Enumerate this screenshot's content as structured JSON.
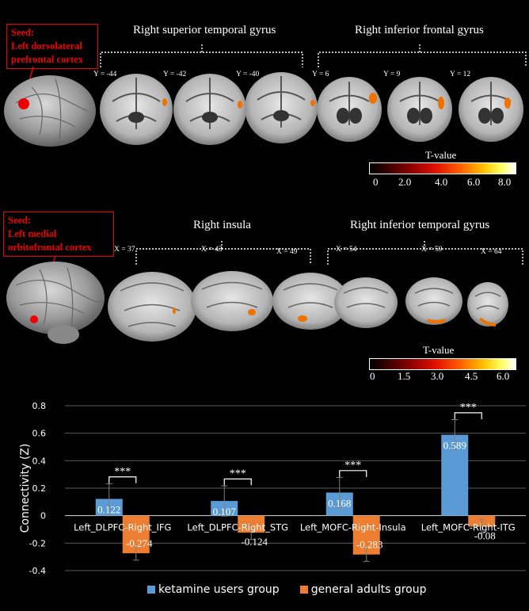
{
  "panel1": {
    "seed_label": "Seed:",
    "seed_region": "Left dorsolateral prefrontal cortex",
    "regions": [
      {
        "title": "Right superior temporal gyrus",
        "coords": [
          "Y = -44",
          "Y = -42",
          "Y = -40"
        ]
      },
      {
        "title": "Right inferior frontal gyrus",
        "coords": [
          "Y = 6",
          "Y = 9",
          "Y = 12"
        ]
      }
    ],
    "tvalue_title": "T-value",
    "tvalue_ticks": [
      "0",
      "2.0",
      "4.0",
      "6.0",
      "8.0"
    ]
  },
  "panel2": {
    "seed_label": "Seed:",
    "seed_region": "Left medial orbitofrontal cortex",
    "regions": [
      {
        "title": "Right insula",
        "coords": [
          "X = 37",
          "X = 43",
          "X = 49"
        ]
      },
      {
        "title": "Right inferior temporal gyrus",
        "coords": [
          "X = 54",
          "X = 59",
          "X = 64"
        ]
      }
    ],
    "tvalue_title": "T-value",
    "tvalue_ticks": [
      "0",
      "1.5",
      "3.0",
      "4.5",
      "6.0"
    ]
  },
  "colors": {
    "ketamine": "#5b9bd5",
    "general": "#ed7d31",
    "seed": "#e00000",
    "activation": "#f07000"
  },
  "chart_data": {
    "type": "bar",
    "ylabel": "Connectivity (Z)",
    "ylim": [
      -0.4,
      0.8
    ],
    "yticks": [
      "0.8",
      "0.6",
      "0.4",
      "0.2",
      "0",
      "-0.2",
      "-0.4"
    ],
    "ytick_values": [
      0.8,
      0.6,
      0.4,
      0.2,
      0,
      -0.2,
      -0.4
    ],
    "grid": true,
    "legend_position": "bottom",
    "categories": [
      "Left_DLPFC-Right_IFG",
      "Left_DLPFC-Right_STG",
      "Left_MOFC-Right-Insula",
      "Left_MOFC-Right-ITG"
    ],
    "series": [
      {
        "name": "ketamine users group",
        "values": [
          0.122,
          0.107,
          0.168,
          0.589
        ],
        "labels": [
          "0.122",
          "0.107",
          "0.168",
          "0.589"
        ],
        "errors": [
          0.11,
          0.11,
          0.11,
          0.11
        ]
      },
      {
        "name": "general adults group",
        "values": [
          -0.274,
          -0.124,
          -0.283,
          -0.08
        ],
        "labels": [
          "-0.274",
          "-0.124",
          "-0.283",
          "-0.08"
        ],
        "errors": [
          0.05,
          0.05,
          0.05,
          0.05
        ]
      }
    ],
    "significance": [
      "***",
      "***",
      "***",
      "***"
    ]
  }
}
